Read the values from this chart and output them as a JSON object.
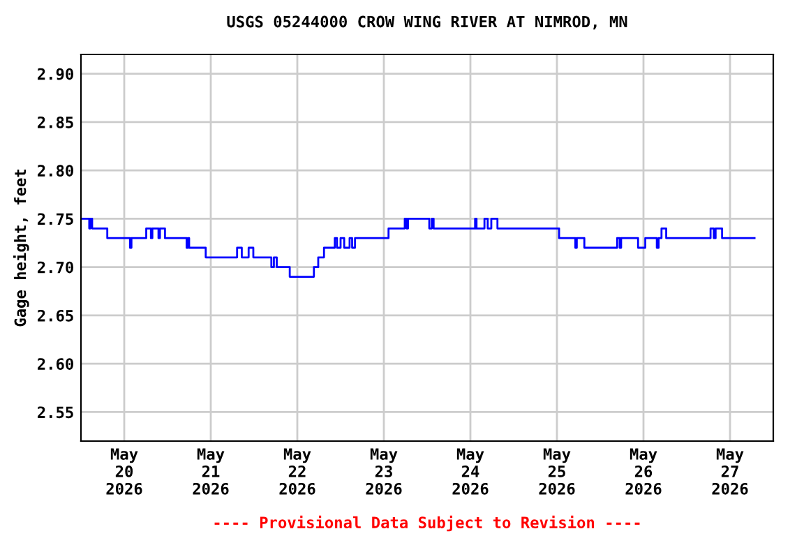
{
  "chart_data": {
    "type": "step",
    "title": "USGS 05244000 CROW WING RIVER AT NIMROD, MN",
    "ylabel": "Gage height, feet",
    "annotations": [
      "---- Provisional Data Subject to Revision ----"
    ],
    "x": [
      "2026-05-19T12:00",
      "2026-05-19T14:18",
      "2026-05-19T14:36",
      "2026-05-19T15:06",
      "2026-05-19T19:18",
      "2026-05-20T01:36",
      "2026-05-20T02:00",
      "2026-05-20T06:06",
      "2026-05-20T07:24",
      "2026-05-20T07:48",
      "2026-05-20T09:30",
      "2026-05-20T09:54",
      "2026-05-20T11:18",
      "2026-05-20T17:18",
      "2026-05-20T17:42",
      "2026-05-20T18:00",
      "2026-05-20T22:36",
      "2026-05-21T07:18",
      "2026-05-21T08:36",
      "2026-05-21T10:30",
      "2026-05-21T11:48",
      "2026-05-21T16:48",
      "2026-05-21T17:30",
      "2026-05-21T18:18",
      "2026-05-21T21:54",
      "2026-05-22T04:36",
      "2026-05-22T05:48",
      "2026-05-22T07:24",
      "2026-05-22T10:24",
      "2026-05-22T11:00",
      "2026-05-22T12:00",
      "2026-05-22T13:00",
      "2026-05-22T14:30",
      "2026-05-22T15:12",
      "2026-05-22T16:00",
      "2026-05-23T01:18",
      "2026-05-23T05:48",
      "2026-05-23T06:18",
      "2026-05-23T06:42",
      "2026-05-23T12:36",
      "2026-05-23T13:18",
      "2026-05-23T13:48",
      "2026-05-24T01:18",
      "2026-05-24T01:42",
      "2026-05-24T03:54",
      "2026-05-24T04:48",
      "2026-05-24T05:48",
      "2026-05-24T07:30",
      "2026-05-25T00:36",
      "2026-05-25T05:06",
      "2026-05-25T05:30",
      "2026-05-25T07:36",
      "2026-05-25T16:42",
      "2026-05-25T17:24",
      "2026-05-25T17:48",
      "2026-05-25T22:30",
      "2026-05-26T00:30",
      "2026-05-26T03:42",
      "2026-05-26T04:12",
      "2026-05-26T05:00",
      "2026-05-26T06:18",
      "2026-05-26T18:36",
      "2026-05-26T19:30",
      "2026-05-26T20:00",
      "2026-05-26T21:48",
      "2026-05-27T06:48"
    ],
    "series": [
      {
        "color": "#0000ff",
        "values": [
          2.75,
          2.74,
          2.75,
          2.74,
          2.73,
          2.72,
          2.73,
          2.74,
          2.73,
          2.74,
          2.73,
          2.74,
          2.73,
          2.72,
          2.73,
          2.72,
          2.71,
          2.72,
          2.71,
          2.72,
          2.71,
          2.7,
          2.71,
          2.7,
          2.69,
          2.7,
          2.71,
          2.72,
          2.73,
          2.72,
          2.73,
          2.72,
          2.73,
          2.72,
          2.73,
          2.74,
          2.75,
          2.74,
          2.75,
          2.74,
          2.75,
          2.74,
          2.75,
          2.74,
          2.75,
          2.74,
          2.75,
          2.74,
          2.73,
          2.72,
          2.73,
          2.72,
          2.73,
          2.72,
          2.73,
          2.72,
          2.73,
          2.72,
          2.73,
          2.74,
          2.73,
          2.74,
          2.73,
          2.74,
          2.73,
          2.73
        ]
      }
    ],
    "xlim": [
      "2026-05-19T12:00",
      "2026-05-27T12:00"
    ],
    "xticks": [
      {
        "value": "2026-05-20",
        "label": "May\n20\n2026"
      },
      {
        "value": "2026-05-21",
        "label": "May\n21\n2026"
      },
      {
        "value": "2026-05-22",
        "label": "May\n22\n2026"
      },
      {
        "value": "2026-05-23",
        "label": "May\n23\n2026"
      },
      {
        "value": "2026-05-24",
        "label": "May\n24\n2026"
      },
      {
        "value": "2026-05-25",
        "label": "May\n25\n2026"
      },
      {
        "value": "2026-05-26",
        "label": "May\n26\n2026"
      },
      {
        "value": "2026-05-27",
        "label": "May\n27\n2026"
      }
    ],
    "ylim": [
      2.52,
      2.92
    ],
    "yticks": [
      {
        "value": 2.55,
        "label": "2.55"
      },
      {
        "value": 2.6,
        "label": "2.60"
      },
      {
        "value": 2.65,
        "label": "2.65"
      },
      {
        "value": 2.7,
        "label": "2.70"
      },
      {
        "value": 2.75,
        "label": "2.75"
      },
      {
        "value": 2.8,
        "label": "2.80"
      },
      {
        "value": 2.85,
        "label": "2.85"
      },
      {
        "value": 2.9,
        "label": "2.90"
      }
    ],
    "grid": true,
    "legend": false
  }
}
